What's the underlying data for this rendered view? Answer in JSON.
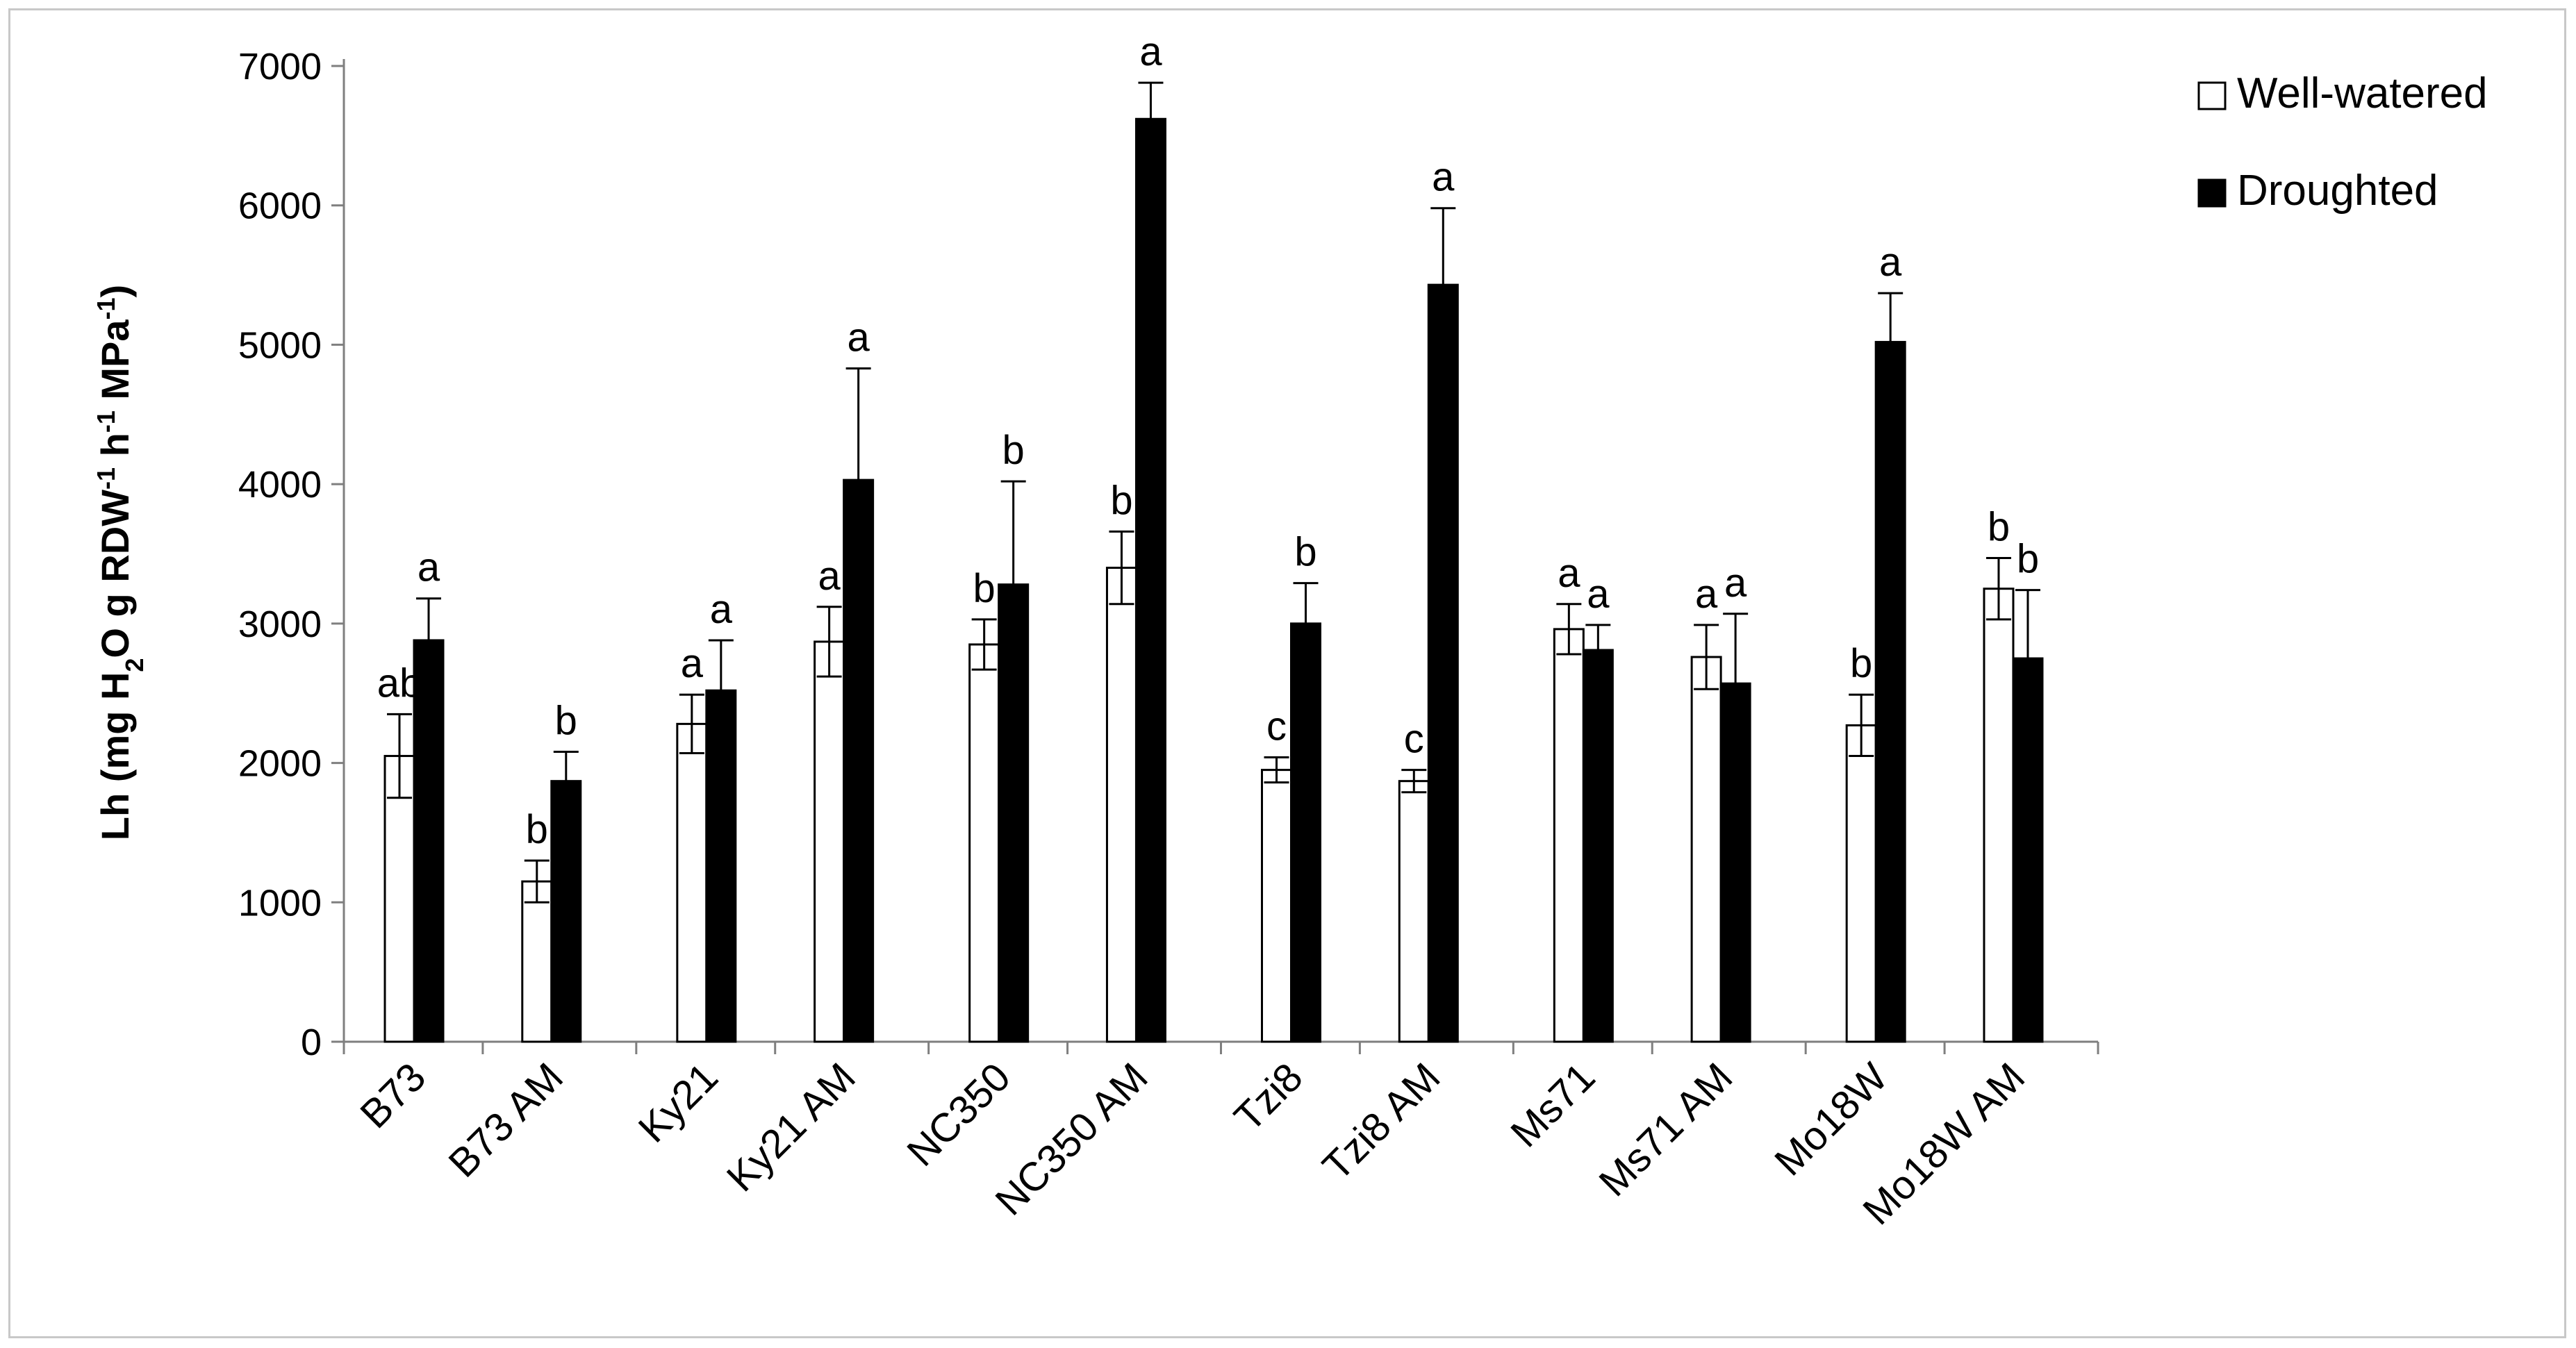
{
  "chart_data": {
    "type": "bar",
    "ylabel": {
      "parts": [
        {
          "text": "Lh (mg H",
          "sup": false,
          "sub": false
        },
        {
          "text": "2",
          "sub": true
        },
        {
          "text": "O g RDW",
          "sub": false
        },
        {
          "text": "-1",
          "sup": true
        },
        {
          "text": " h",
          "sub": false
        },
        {
          "text": "-1",
          "sup": true
        },
        {
          "text": " MPa",
          "sub": false
        },
        {
          "text": "-1",
          "sup": true
        },
        {
          "text": ")",
          "sub": false
        }
      ]
    },
    "ylim": [
      0,
      7000
    ],
    "yticks": [
      0,
      1000,
      2000,
      3000,
      4000,
      5000,
      6000,
      7000
    ],
    "grid": false,
    "legend_position": "top-right",
    "categories": [
      "B73",
      "B73 AM",
      "Ky21",
      "Ky21 AM",
      "NC350",
      "NC350 AM",
      "Tzi8",
      "Tzi8 AM",
      "Ms71",
      "Ms71 AM",
      "Mo18W",
      "Mo18W AM"
    ],
    "series": [
      {
        "name": "Well-watered",
        "color": "#ffffff",
        "values": [
          2050,
          1150,
          2280,
          2870,
          2850,
          3400,
          1950,
          1870,
          2960,
          2760,
          2270,
          3250
        ],
        "errors": [
          300,
          150,
          210,
          250,
          180,
          260,
          90,
          80,
          180,
          230,
          220,
          220
        ],
        "letters": [
          "ab",
          "b",
          "a",
          "a",
          "b",
          "b",
          "c",
          "c",
          "a",
          "a",
          "b",
          "b"
        ]
      },
      {
        "name": "Droughted",
        "color": "#000000",
        "values": [
          2880,
          1870,
          2520,
          4030,
          3280,
          6620,
          3000,
          5430,
          2810,
          2570,
          5020,
          2750
        ],
        "errors": [
          300,
          210,
          360,
          800,
          740,
          260,
          290,
          550,
          180,
          500,
          350,
          490
        ],
        "letters": [
          "a",
          "b",
          "a",
          "a",
          "b",
          "a",
          "b",
          "a",
          "a",
          "a",
          "a",
          "b"
        ]
      }
    ]
  }
}
